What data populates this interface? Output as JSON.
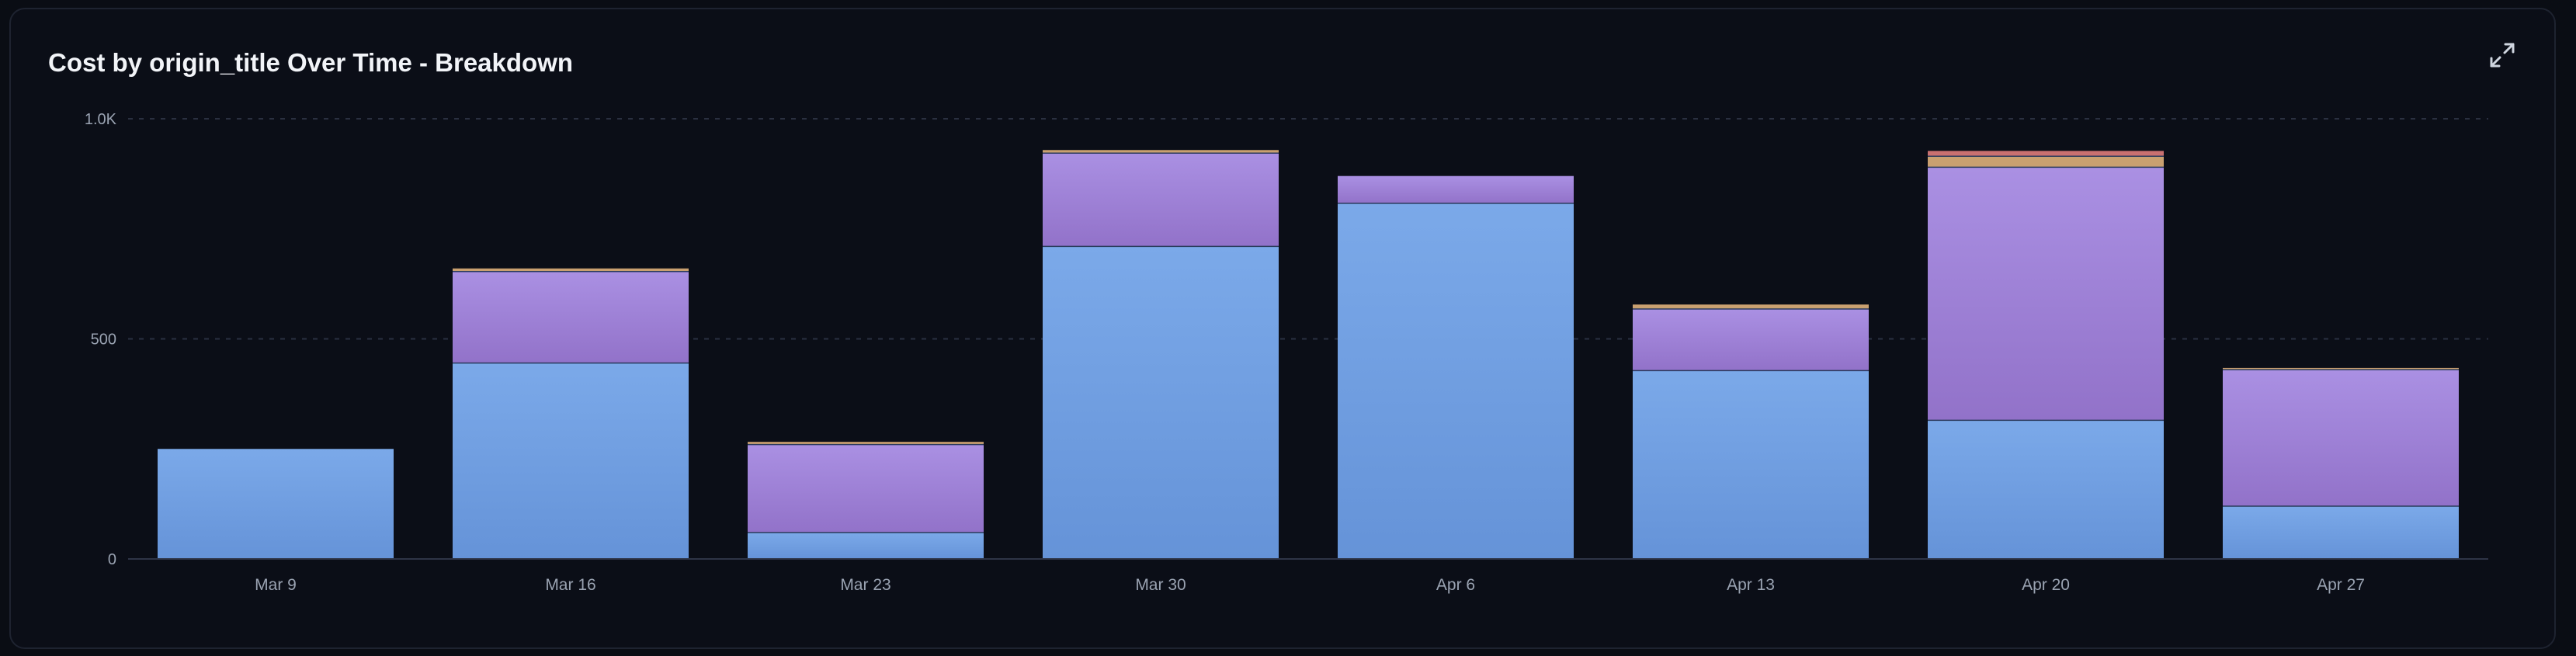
{
  "title": "Cost by origin_title Over Time - Breakdown",
  "icons": {
    "expand": "expand-icon"
  },
  "colors": {
    "series_blue_top": "#7ba9e9",
    "series_blue_bottom": "#6593d8",
    "series_purple_top": "#aa90e3",
    "series_purple_bottom": "#9272c9",
    "series_gold": "#c9a070",
    "series_red": "#c97070",
    "grid": "#2a3040",
    "baseline": "#2e3446"
  },
  "chart_data": {
    "type": "bar",
    "stacked": true,
    "title": "Cost by origin_title Over Time - Breakdown",
    "xlabel": "",
    "ylabel": "",
    "categories": [
      "Mar 9",
      "Mar 16",
      "Mar 23",
      "Mar 30",
      "Apr 6",
      "Apr 13",
      "Apr 20",
      "Apr 27"
    ],
    "series": [
      {
        "color": "#7ba9e9",
        "values": [
          250,
          445,
          60,
          710,
          808,
          428,
          315,
          120
        ]
      },
      {
        "color": "#a184dc",
        "values": [
          0,
          208,
          200,
          212,
          62,
          140,
          575,
          310
        ]
      },
      {
        "color": "#c9a070",
        "values": [
          0,
          7,
          6,
          7,
          0,
          10,
          25,
          4
        ]
      },
      {
        "color": "#c97070",
        "values": [
          0,
          0,
          0,
          0,
          0,
          0,
          12,
          0
        ]
      }
    ],
    "y_ticks": [
      "0",
      "500",
      "1.0K"
    ],
    "y_tick_values": [
      0,
      500,
      1000
    ],
    "ylim": [
      0,
      1000
    ],
    "grid": true,
    "legend": "none"
  }
}
